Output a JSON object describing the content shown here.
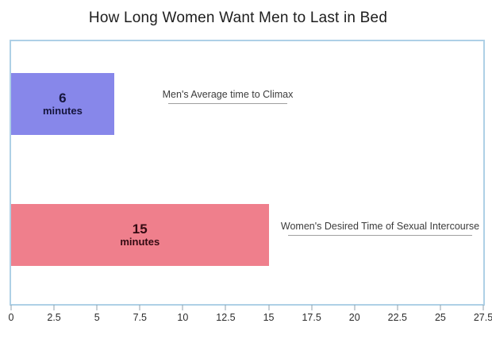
{
  "title": "How Long Women Want Men to Last in Bed",
  "colors": {
    "bar_men": "#8787ea",
    "bar_women": "#ef7f8c",
    "bar_men_text": "#15153d",
    "bar_women_text": "#330a12",
    "plot_border": "#aed0e6",
    "tick": "#8fa2ae",
    "tick_label": "#2b2b2b",
    "annotation_text": "#3c3c3c",
    "annotation_underline": "#a0a0a0"
  },
  "bars": [
    {
      "value_text": "6",
      "unit_text": "minutes",
      "annotation": "Men's Average time to Climax"
    },
    {
      "value_text": "15",
      "unit_text": "minutes",
      "annotation": "Women's Desired Time of Sexual Intercourse"
    }
  ],
  "chart_data": {
    "type": "bar",
    "orientation": "horizontal",
    "title": "How Long Women Want Men to Last in Bed",
    "categories": [
      "Men's Average time to Climax",
      "Women's Desired Time of Sexual Intercourse"
    ],
    "values": [
      6,
      15
    ],
    "value_unit": "minutes",
    "xlabel": "",
    "ylabel": "",
    "xlim": [
      0,
      27.5
    ],
    "x_ticks": [
      0,
      2.5,
      5,
      7.5,
      10,
      12.5,
      15,
      17.5,
      20,
      22.5,
      25,
      27.5
    ],
    "x_tick_labels": [
      "0",
      "2.5",
      "5",
      "7.5",
      "10",
      "12.5",
      "15",
      "17.5",
      "20",
      "22.5",
      "25",
      "27.5"
    ],
    "grid": false,
    "legend": "none",
    "annotations": [
      "Men's Average time to Climax",
      "Women's Desired Time of Sexual Intercourse"
    ]
  }
}
